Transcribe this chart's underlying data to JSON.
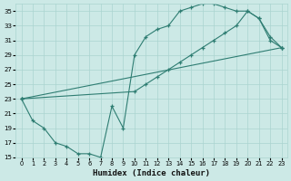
{
  "xlabel": "Humidex (Indice chaleur)",
  "background_color": "#cce9e6",
  "grid_color": "#aad4d0",
  "line_color": "#2e7d72",
  "xlim": [
    -0.5,
    23.5
  ],
  "ylim": [
    15,
    36
  ],
  "yticks": [
    15,
    17,
    19,
    21,
    23,
    25,
    27,
    29,
    31,
    33,
    35
  ],
  "xticks": [
    0,
    1,
    2,
    3,
    4,
    5,
    6,
    7,
    8,
    9,
    10,
    11,
    12,
    13,
    14,
    15,
    16,
    17,
    18,
    19,
    20,
    21,
    22,
    23
  ],
  "line1_x": [
    0,
    1,
    2,
    3,
    4,
    5,
    6,
    7,
    8,
    9,
    10,
    11,
    12,
    13,
    14,
    15,
    16,
    17,
    18,
    19,
    20,
    21,
    22,
    23
  ],
  "line1_y": [
    23,
    20,
    19,
    17,
    16.5,
    15.5,
    15.5,
    15,
    22,
    19,
    29,
    31.5,
    32.5,
    33,
    35,
    35.5,
    36,
    36,
    35.5,
    35,
    35,
    34,
    31.5,
    30
  ],
  "line2_x": [
    0,
    10,
    11,
    12,
    13,
    14,
    15,
    16,
    17,
    18,
    19,
    20,
    21,
    22,
    23
  ],
  "line2_y": [
    23,
    24,
    25,
    26,
    27,
    28,
    29,
    30,
    31,
    32,
    33,
    35,
    34,
    31,
    30
  ],
  "line3_x": [
    0,
    23
  ],
  "line3_y": [
    23,
    30
  ]
}
